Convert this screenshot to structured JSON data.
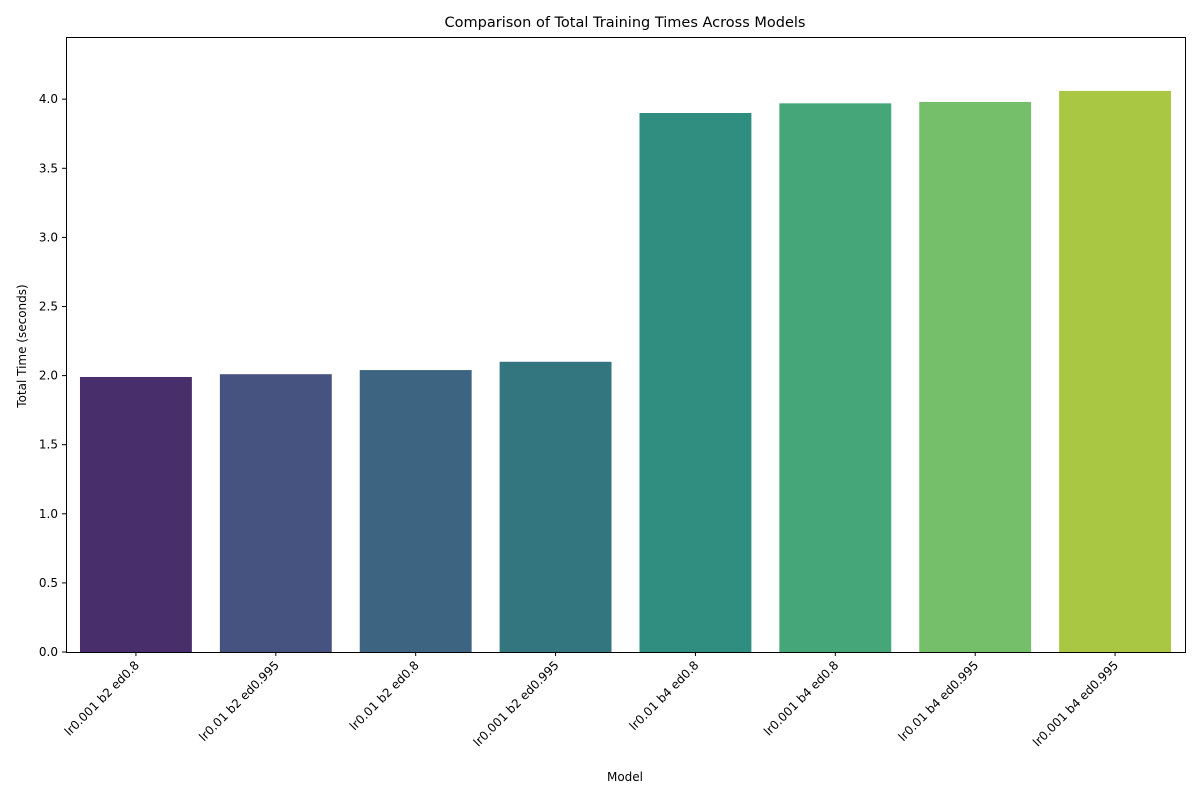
{
  "chart_data": {
    "type": "bar",
    "title": "Comparison of Total Training Times Across Models",
    "xlabel": "Model",
    "ylabel": "Total Time (seconds)",
    "categories": [
      "lr0.001 b2 ed0.8",
      "lr0.01 b2 ed0.995",
      "lr0.01 b2 ed0.8",
      "lr0.001 b2 ed0.995",
      "lr0.01 b4 ed0.8",
      "lr0.001 b4 ed0.8",
      "lr0.01 b4 ed0.995",
      "lr0.001 b4 ed0.995"
    ],
    "values": [
      1.99,
      2.01,
      2.04,
      2.1,
      3.9,
      3.97,
      3.98,
      4.06
    ],
    "colors": [
      "#482f6c",
      "#46527f",
      "#3d6480",
      "#337680",
      "#2f8e7f",
      "#45a779",
      "#76bf6a",
      "#a9c743"
    ],
    "ylim": [
      0,
      4.45
    ],
    "yticks": [
      "0.0",
      "0.5",
      "1.0",
      "1.5",
      "2.0",
      "2.5",
      "3.0",
      "3.5",
      "4.0"
    ],
    "grid": false,
    "legend": false
  }
}
